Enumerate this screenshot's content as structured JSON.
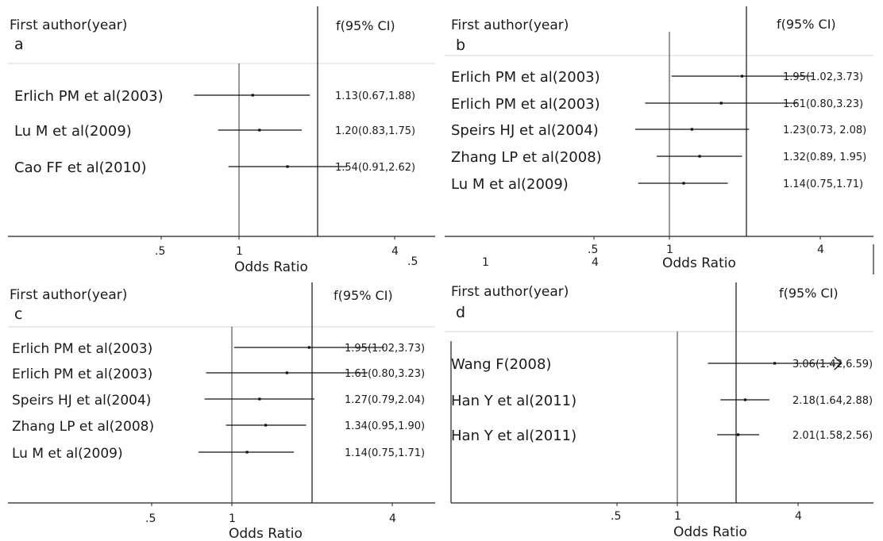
{
  "chart_data": [
    {
      "type": "forest",
      "panel_label": "a",
      "header_left": "First author(year)",
      "header_right": "f(95% CI)",
      "xlabel": "Odds Ratio",
      "xscale": "log",
      "ticks": [
        ".5",
        "1",
        "4"
      ],
      "extra_tick_labels": [
        ".5"
      ],
      "reference_line": 1,
      "studies": [
        {
          "label": "Erlich PM et al(2003)",
          "or": 1.13,
          "lo": 0.67,
          "hi": 1.88,
          "ci_text": "1.13(0.67,1.88)"
        },
        {
          "label": "Lu M et al(2009)",
          "or": 1.2,
          "lo": 0.83,
          "hi": 1.75,
          "ci_text": "1.20(0.83,1.75)"
        },
        {
          "label": "Cao FF et al(2010)",
          "or": 1.54,
          "lo": 0.91,
          "hi": 2.62,
          "ci_text": "1.54(0.91,2.62)"
        }
      ]
    },
    {
      "type": "forest",
      "panel_label": "b",
      "header_left": "First author(year)",
      "header_right": "f(95% CI)",
      "xlabel": "Odds Ratio",
      "xscale": "log",
      "ticks": [
        ".5",
        "1",
        "4"
      ],
      "extra_tick_labels": [
        "1",
        "4"
      ],
      "reference_line": 1,
      "studies": [
        {
          "label": "Erlich PM et al(2003)",
          "or": 1.95,
          "lo": 1.02,
          "hi": 3.73,
          "ci_text": "1.95(1.02,3.73)"
        },
        {
          "label": "Erlich PM et al(2003)",
          "or": 1.61,
          "lo": 0.8,
          "hi": 3.23,
          "ci_text": "1.61(0.80,3.23)"
        },
        {
          "label": "Speirs HJ et al(2004)",
          "or": 1.23,
          "lo": 0.73,
          "hi": 2.08,
          "ci_text": "1.23(0.73, 2.08)"
        },
        {
          "label": "Zhang LP et al(2008)",
          "or": 1.32,
          "lo": 0.89,
          "hi": 1.95,
          "ci_text": "1.32(0.89, 1.95)"
        },
        {
          "label": "Lu M et al(2009)",
          "or": 1.14,
          "lo": 0.75,
          "hi": 1.71,
          "ci_text": "1.14(0.75,1.71)"
        }
      ]
    },
    {
      "type": "forest",
      "panel_label": "c",
      "header_left": "First author(year)",
      "header_right": "f(95% CI)",
      "xlabel": "Odds Ratio",
      "xscale": "log",
      "ticks": [
        ".5",
        "1",
        "4"
      ],
      "extra_tick_labels": [],
      "reference_line": 1,
      "studies": [
        {
          "label": "Erlich PM et al(2003)",
          "or": 1.95,
          "lo": 1.02,
          "hi": 3.73,
          "ci_text": "1.95(1.02,3.73)"
        },
        {
          "label": "Erlich PM et al(2003)",
          "or": 1.61,
          "lo": 0.8,
          "hi": 3.23,
          "ci_text": "1.61(0.80,3.23)"
        },
        {
          "label": "Speirs HJ et al(2004)",
          "or": 1.27,
          "lo": 0.79,
          "hi": 2.04,
          "ci_text": "1.27(0.79,2.04)"
        },
        {
          "label": "Zhang LP et al(2008)",
          "or": 1.34,
          "lo": 0.95,
          "hi": 1.9,
          "ci_text": "1.34(0.95,1.90)"
        },
        {
          "label": "Lu M et al(2009)",
          "or": 1.14,
          "lo": 0.75,
          "hi": 1.71,
          "ci_text": "1.14(0.75,1.71)"
        }
      ]
    },
    {
      "type": "forest",
      "panel_label": "d",
      "header_left": "First author(year)",
      "header_right": "f(95% CI)",
      "xlabel": "Odds Ratio",
      "xscale": "log",
      "ticks": [
        ".5",
        "1",
        "4"
      ],
      "extra_tick_labels": [],
      "reference_line": 1,
      "studies": [
        {
          "label": "Wang F(2008)",
          "or": 3.06,
          "lo": 1.42,
          "hi": 6.59,
          "ci_text": "3.06(1.42,6.59)",
          "arrow_right": true
        },
        {
          "label": "Han Y et al(2011)",
          "or": 2.18,
          "lo": 1.64,
          "hi": 2.88,
          "ci_text": "2.18(1.64,2.88)"
        },
        {
          "label": "Han Y et al(2011)",
          "or": 2.01,
          "lo": 1.58,
          "hi": 2.56,
          "ci_text": "2.01(1.58,2.56)"
        }
      ]
    }
  ]
}
